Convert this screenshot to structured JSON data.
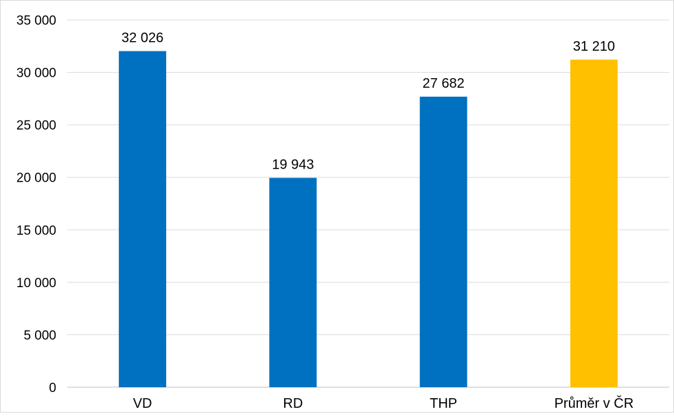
{
  "chart_data": {
    "type": "bar",
    "title": "",
    "xlabel": "",
    "ylabel": "",
    "categories": [
      "VD",
      "RD",
      "THP",
      "Průměr v ČR"
    ],
    "values": [
      32026,
      19943,
      27682,
      31210
    ],
    "data_labels": [
      "32 026",
      "19 943",
      "27 682",
      "31 210"
    ],
    "ylim": [
      0,
      35000
    ],
    "yticks": [
      0,
      5000,
      10000,
      15000,
      20000,
      25000,
      30000,
      35000
    ],
    "ytick_labels": [
      "0",
      "5 000",
      "10 000",
      "15 000",
      "20 000",
      "25 000",
      "30 000",
      "35 000"
    ],
    "bar_colors": [
      "#0070C0",
      "#0070C0",
      "#0070C0",
      "#FFC000"
    ],
    "grid": true,
    "legend": "none"
  }
}
